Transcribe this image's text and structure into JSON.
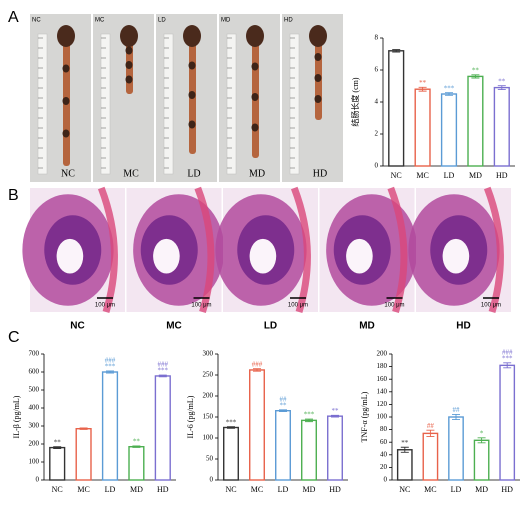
{
  "panel_labels": [
    "A",
    "B",
    "C"
  ],
  "photos": {
    "corner_labels": [
      "NC",
      "MC",
      "LD",
      "MD",
      "HD"
    ],
    "labels": [
      "NC",
      "MC",
      "LD",
      "MD",
      "HD"
    ]
  },
  "histology": {
    "labels": [
      "NC",
      "MC",
      "LD",
      "MD",
      "HD"
    ],
    "scale_bar_label": "100 μm"
  },
  "chart_data": [
    {
      "type": "bar",
      "y_label": "结肠长度 (cm)",
      "categories": [
        "NC",
        "MC",
        "LD",
        "MD",
        "HD"
      ],
      "values": [
        7.2,
        4.8,
        4.5,
        5.6,
        4.9
      ],
      "errors": [
        0.08,
        0.12,
        0.08,
        0.1,
        0.12
      ],
      "annotations": [
        [],
        [
          "**"
        ],
        [
          "***"
        ],
        [
          "**"
        ],
        [
          "**"
        ]
      ],
      "colors": [
        "#333333",
        "#e8624a",
        "#5b9bd5",
        "#4caf50",
        "#7b6fd0"
      ],
      "ylim": [
        0,
        8
      ],
      "yticks": [
        0,
        2,
        4,
        6,
        8
      ]
    },
    {
      "type": "bar",
      "y_label": "IL-β (pg/mL)",
      "categories": [
        "NC",
        "MC",
        "LD",
        "MD",
        "HD"
      ],
      "values": [
        180,
        285,
        600,
        185,
        578
      ],
      "errors": [
        5,
        4,
        6,
        4,
        5
      ],
      "annotations": [
        [
          "**"
        ],
        [],
        [
          "###",
          "***"
        ],
        [
          "**"
        ],
        [
          "###",
          "***"
        ]
      ],
      "colors": [
        "#333333",
        "#e8624a",
        "#5b9bd5",
        "#4caf50",
        "#7b6fd0"
      ],
      "ylim": [
        0,
        700
      ],
      "yticks": [
        0,
        100,
        200,
        300,
        400,
        500,
        600,
        700
      ]
    },
    {
      "type": "bar",
      "y_label": "IL-6 (pg/mL)",
      "categories": [
        "NC",
        "MC",
        "LD",
        "MD",
        "HD"
      ],
      "values": [
        125,
        262,
        165,
        142,
        152
      ],
      "errors": [
        2,
        3,
        2,
        3,
        2
      ],
      "annotations": [
        [
          "***"
        ],
        [
          "###"
        ],
        [
          "##",
          "**"
        ],
        [
          "***"
        ],
        [
          "**"
        ]
      ],
      "colors": [
        "#333333",
        "#e8624a",
        "#5b9bd5",
        "#4caf50",
        "#7b6fd0"
      ],
      "ylim": [
        0,
        300
      ],
      "yticks": [
        0,
        50,
        100,
        150,
        200,
        250,
        300
      ]
    },
    {
      "type": "bar",
      "y_label": "TNF-α (pg/mL)",
      "categories": [
        "NC",
        "MC",
        "LD",
        "MD",
        "HD"
      ],
      "values": [
        48,
        74,
        100,
        63,
        182
      ],
      "errors": [
        4,
        5,
        4,
        4,
        4
      ],
      "annotations": [
        [
          "**"
        ],
        [
          "##"
        ],
        [
          "##"
        ],
        [
          "*"
        ],
        [
          "###",
          "***"
        ]
      ],
      "colors": [
        "#333333",
        "#e8624a",
        "#5b9bd5",
        "#4caf50",
        "#7b6fd0"
      ],
      "ylim": [
        0,
        200
      ],
      "yticks": [
        0,
        20,
        40,
        60,
        80,
        100,
        120,
        140,
        160,
        180,
        200
      ]
    }
  ]
}
